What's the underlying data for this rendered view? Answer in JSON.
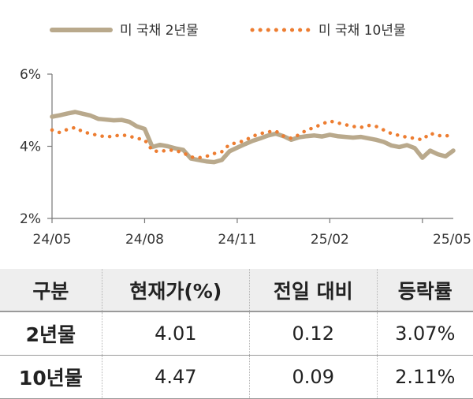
{
  "chart_data": {
    "type": "line",
    "title": "",
    "xlabel": "",
    "ylabel": "",
    "ylim": [
      2,
      6
    ],
    "y_ticks": [
      "2%",
      "4%",
      "6%"
    ],
    "y_tick_values": [
      2,
      4,
      6
    ],
    "x_ticks": [
      "24/05",
      "24/08",
      "24/11",
      "25/02",
      "25/05"
    ],
    "x_tick_index": [
      0,
      12,
      24,
      36,
      48
    ],
    "legend_position": "top",
    "grid": false,
    "series": [
      {
        "name": "미 국채 2년물",
        "style": "solid",
        "color": "#b9a98c",
        "values": [
          4.82,
          4.86,
          4.91,
          4.95,
          4.9,
          4.85,
          4.76,
          4.74,
          4.72,
          4.73,
          4.68,
          4.55,
          4.48,
          3.98,
          4.04,
          4.0,
          3.94,
          3.9,
          3.66,
          3.62,
          3.58,
          3.56,
          3.62,
          3.86,
          3.96,
          4.06,
          4.15,
          4.22,
          4.3,
          4.35,
          4.28,
          4.18,
          4.25,
          4.28,
          4.3,
          4.27,
          4.32,
          4.28,
          4.26,
          4.24,
          4.26,
          4.22,
          4.18,
          4.12,
          4.02,
          3.98,
          4.03,
          3.95,
          3.68,
          3.88,
          3.78,
          3.72,
          3.88
        ]
      },
      {
        "name": "미 국채 10년물",
        "style": "dotted",
        "color": "#ed7d31",
        "values": [
          4.45,
          4.38,
          4.47,
          4.52,
          4.4,
          4.35,
          4.3,
          4.26,
          4.28,
          4.32,
          4.28,
          4.22,
          4.18,
          3.88,
          3.85,
          3.9,
          3.88,
          3.82,
          3.7,
          3.68,
          3.72,
          3.8,
          3.85,
          4.05,
          4.1,
          4.16,
          4.28,
          4.35,
          4.4,
          4.42,
          4.28,
          4.22,
          4.32,
          4.45,
          4.52,
          4.62,
          4.7,
          4.65,
          4.6,
          4.55,
          4.52,
          4.58,
          4.55,
          4.45,
          4.35,
          4.3,
          4.25,
          4.22,
          4.18,
          4.36,
          4.3,
          4.28,
          4.34
        ]
      }
    ]
  },
  "table": {
    "headers": [
      "구분",
      "현재가(%)",
      "전일 대비",
      "등락률"
    ],
    "rows": [
      [
        "2년물",
        "4.01",
        "0.12",
        "3.07%"
      ],
      [
        "10년물",
        "4.47",
        "0.09",
        "2.11%"
      ]
    ]
  }
}
